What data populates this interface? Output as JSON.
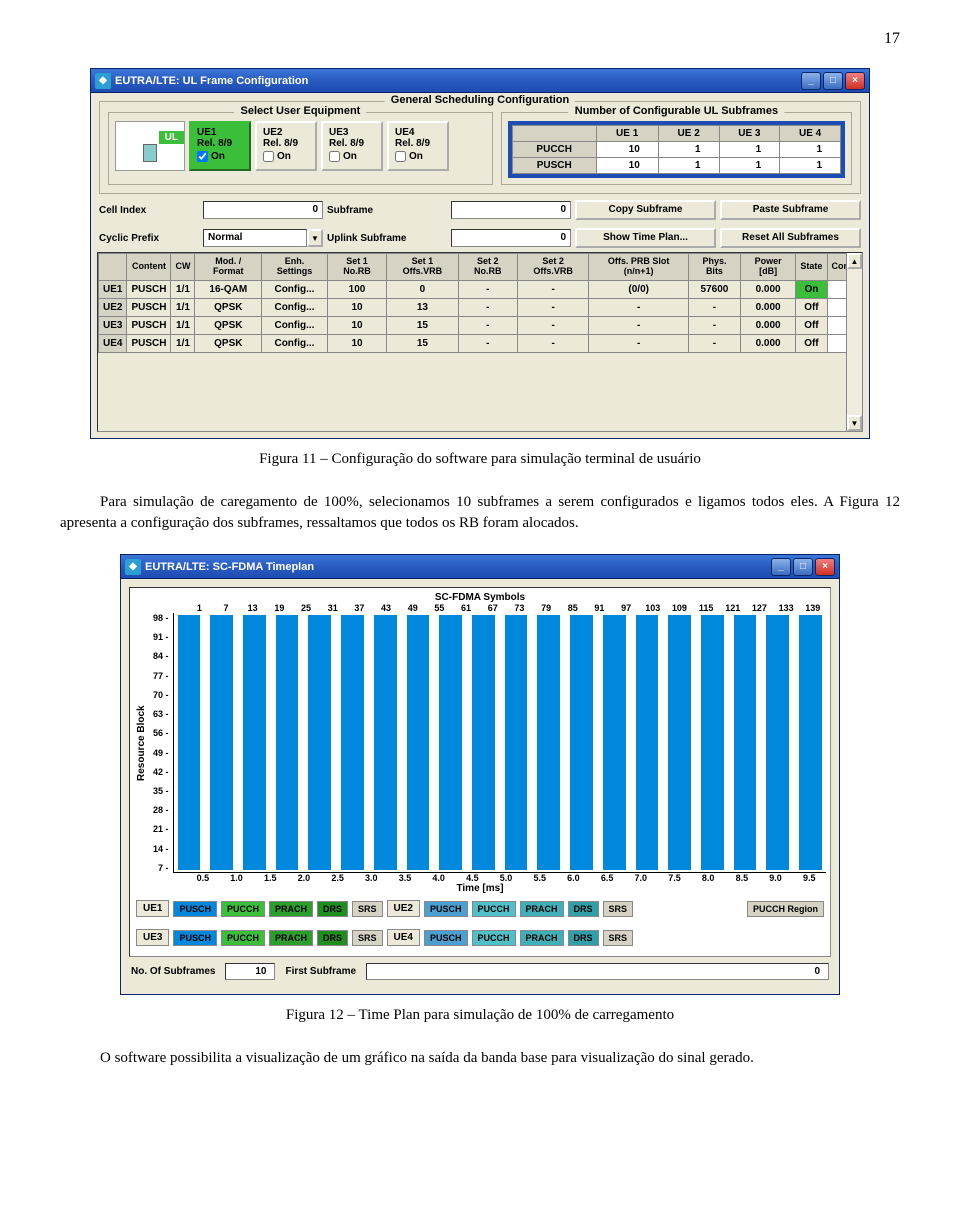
{
  "page": {
    "number": "17"
  },
  "captions": {
    "fig11": "Figura 11 – Configuração do software para simulação terminal de usuário",
    "fig12": "Figura 12 – Time Plan para simulação de 100% de carregamento"
  },
  "paragraphs": {
    "p1": "Para simulação de caregamento de 100%, selecionamos 10 subframes a serem configurados e ligamos todos eles. A Figura 12 apresenta a configuração dos subframes, ressaltamos que todos os RB foram alocados.",
    "p2": "O software possibilita a visualização de um gráfico na saída da banda base para visualização do sinal gerado."
  },
  "window1": {
    "title": "EUTRA/LTE: UL Frame Configuration",
    "group1": "General Scheduling Configuration",
    "group_select": "Select User Equipment",
    "group_subframes": "Number of Configurable UL Subframes",
    "ul_label": "UL",
    "ue_tabs": [
      {
        "name": "UE1",
        "rel": "Rel. 8/9",
        "on": "On",
        "checked": true,
        "active": true
      },
      {
        "name": "UE2",
        "rel": "Rel. 8/9",
        "on": "On",
        "checked": false,
        "active": false
      },
      {
        "name": "UE3",
        "rel": "Rel. 8/9",
        "on": "On",
        "checked": false,
        "active": false
      },
      {
        "name": "UE4",
        "rel": "Rel. 8/9",
        "on": "On",
        "checked": false,
        "active": false
      }
    ],
    "sf_headers": [
      "",
      "UE 1",
      "UE 2",
      "UE 3",
      "UE 4"
    ],
    "sf_rows": [
      {
        "label": "PUCCH",
        "vals": [
          "10",
          "1",
          "1",
          "1"
        ]
      },
      {
        "label": "PUSCH",
        "vals": [
          "10",
          "1",
          "1",
          "1"
        ]
      }
    ],
    "ctrl": {
      "cell_index_label": "Cell Index",
      "cell_index": "0",
      "subframe_label": "Subframe",
      "subframe": "0",
      "copy": "Copy Subframe",
      "paste": "Paste Subframe",
      "cyclic_label": "Cyclic Prefix",
      "cyclic": "Normal",
      "uplink_label": "Uplink Subframe",
      "uplink": "0",
      "show": "Show Time Plan...",
      "reset": "Reset All Subframes"
    },
    "table": {
      "headers": [
        "",
        "Content",
        "CW",
        "Mod. / Format",
        "Enh. Settings",
        "Set 1 No.RB",
        "Set 1 Offs.VRB",
        "Set 2 No.RB",
        "Set 2 Offs.VRB",
        "Offs. PRB Slot (n/n+1)",
        "Phys. Bits",
        "Power [dB]",
        "State",
        "Confl."
      ],
      "rows": [
        {
          "ue": "UE1",
          "content": "PUSCH",
          "cw": "1/1",
          "mod": "16-QAM",
          "enh": "Config...",
          "s1rb": "100",
          "s1off": "0",
          "s2rb": "-",
          "s2off": "-",
          "prb": "(0/0)",
          "bits": "57600",
          "pwr": "0.000",
          "state": "On",
          "state_on": true
        },
        {
          "ue": "UE2",
          "content": "PUSCH",
          "cw": "1/1",
          "mod": "QPSK",
          "enh": "Config...",
          "s1rb": "10",
          "s1off": "13",
          "s2rb": "-",
          "s2off": "-",
          "prb": "-",
          "bits": "-",
          "pwr": "0.000",
          "state": "Off",
          "state_on": false
        },
        {
          "ue": "UE3",
          "content": "PUSCH",
          "cw": "1/1",
          "mod": "QPSK",
          "enh": "Config...",
          "s1rb": "10",
          "s1off": "15",
          "s2rb": "-",
          "s2off": "-",
          "prb": "-",
          "bits": "-",
          "pwr": "0.000",
          "state": "Off",
          "state_on": false
        },
        {
          "ue": "UE4",
          "content": "PUSCH",
          "cw": "1/1",
          "mod": "QPSK",
          "enh": "Config...",
          "s1rb": "10",
          "s1off": "15",
          "s2rb": "-",
          "s2off": "-",
          "prb": "-",
          "bits": "-",
          "pwr": "0.000",
          "state": "Off",
          "state_on": false
        }
      ]
    }
  },
  "window2": {
    "title": "EUTRA/LTE: SC-FDMA Timeplan",
    "plot_title": "SC-FDMA Symbols",
    "ylabel": "Resource Block",
    "xlabel": "Time [ms]",
    "yticks": [
      "98",
      "91",
      "84",
      "77",
      "70",
      "63",
      "56",
      "49",
      "42",
      "35",
      "28",
      "21",
      "14",
      "7"
    ],
    "xticks": [
      "0.5",
      "1.0",
      "1.5",
      "2.0",
      "2.5",
      "3.0",
      "3.5",
      "4.0",
      "4.5",
      "5.0",
      "5.5",
      "6.0",
      "6.5",
      "7.0",
      "7.5",
      "8.0",
      "8.5",
      "9.0",
      "9.5"
    ],
    "topticks": [
      "1",
      "7",
      "13",
      "19",
      "25",
      "31",
      "37",
      "43",
      "49",
      "55",
      "61",
      "67",
      "73",
      "79",
      "85",
      "91",
      "97",
      "103",
      "109",
      "115",
      "121",
      "127",
      "133",
      "139"
    ],
    "n_bars": 20,
    "bar_color": "#0088dd",
    "legend": {
      "rows": [
        {
          "ue": "UE1",
          "items": [
            {
              "label": "PUSCH",
              "color": "#0088dd"
            },
            {
              "label": "PUCCH",
              "color": "#3bbf3b"
            },
            {
              "label": "PRACH",
              "color": "#2b9e2b"
            },
            {
              "label": "DRS",
              "color": "#1e8e1e"
            },
            {
              "label": "SRS",
              "color": "#d6d3c4"
            }
          ]
        },
        {
          "ue": "UE2",
          "items": [
            {
              "label": "PUSCH",
              "color": "#4aa0d0"
            },
            {
              "label": "PUCCH",
              "color": "#50c0c8"
            },
            {
              "label": "PRACH",
              "color": "#40b0b8"
            },
            {
              "label": "DRS",
              "color": "#30a0a8"
            },
            {
              "label": "SRS",
              "color": "#d6d3c4"
            }
          ]
        },
        {
          "ue": "UE3",
          "items": [
            {
              "label": "PUSCH",
              "color": "#0088dd"
            },
            {
              "label": "PUCCH",
              "color": "#3bbf3b"
            },
            {
              "label": "PRACH",
              "color": "#2b9e2b"
            },
            {
              "label": "DRS",
              "color": "#1e8e1e"
            },
            {
              "label": "SRS",
              "color": "#d6d3c4"
            }
          ]
        },
        {
          "ue": "UE4",
          "items": [
            {
              "label": "PUSCH",
              "color": "#4aa0d0"
            },
            {
              "label": "PUCCH",
              "color": "#50c0c8"
            },
            {
              "label": "PRACH",
              "color": "#40b0b8"
            },
            {
              "label": "DRS",
              "color": "#30a0a8"
            },
            {
              "label": "SRS",
              "color": "#d6d3c4"
            }
          ]
        }
      ],
      "pucch_region": "PUCCH Region",
      "pucch_region_color": "#d6d3c4"
    },
    "bottom": {
      "nsub_label": "No. Of Subframes",
      "nsub": "10",
      "first_label": "First Subframe",
      "first": "0"
    }
  },
  "colors": {
    "titlebar": "#2a5bc0",
    "win_bg": "#ece9d8",
    "green": "#3bbf3b",
    "border_dark": "#1d4db3"
  }
}
